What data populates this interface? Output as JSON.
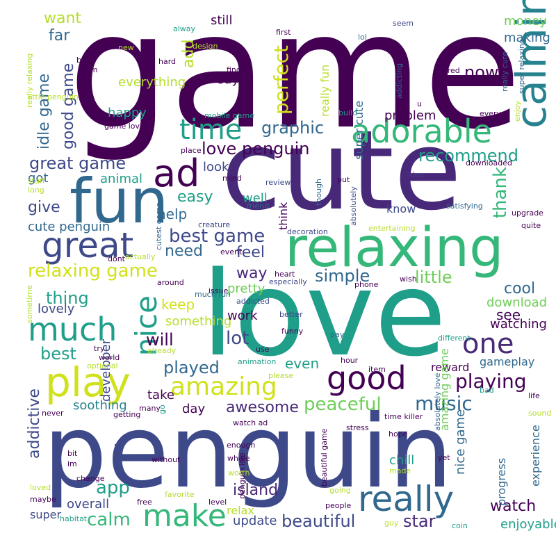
{
  "palette": {
    "purple": "#440154",
    "indigo": "#482878",
    "blue": "#3e4989",
    "steel": "#31688e",
    "teal": "#26828e",
    "sea": "#1f9e89",
    "green": "#35b779",
    "lime": "#6ece58",
    "yellowgreen": "#b5de2b",
    "yellow": "#cddc39",
    "bright": "#d0e11c"
  },
  "words": [
    {
      "text": "game",
      "color": "purple"
    },
    {
      "text": "cute",
      "color": "indigo"
    },
    {
      "text": "love",
      "color": "sea"
    },
    {
      "text": "penguin",
      "color": "blue"
    },
    {
      "text": "relaxing",
      "color": "green"
    },
    {
      "text": "fun",
      "color": "steel"
    },
    {
      "text": "calming",
      "color": "teal"
    },
    {
      "text": "play",
      "color": "bright"
    },
    {
      "text": "great",
      "color": "blue"
    },
    {
      "text": "adorable",
      "color": "green"
    },
    {
      "text": "ad",
      "color": "purple"
    },
    {
      "text": "time",
      "color": "sea"
    },
    {
      "text": "much",
      "color": "sea"
    },
    {
      "text": "good",
      "color": "purple"
    },
    {
      "text": "really",
      "color": "steel"
    },
    {
      "text": "amazing",
      "color": "bright"
    },
    {
      "text": "make",
      "color": "green"
    },
    {
      "text": "one",
      "color": "indigo"
    },
    {
      "text": "nice",
      "color": "sea"
    },
    {
      "text": "perfect",
      "color": "bright"
    },
    {
      "text": "relaxing game",
      "color": "bright"
    },
    {
      "text": "best game",
      "color": "blue"
    },
    {
      "text": "love penguin",
      "color": "purple"
    },
    {
      "text": "great game",
      "color": "blue"
    },
    {
      "text": "graphic",
      "color": "steel"
    },
    {
      "text": "now",
      "color": "purple"
    },
    {
      "text": "recommend",
      "color": "sea"
    },
    {
      "text": "thank",
      "color": "green"
    },
    {
      "text": "peaceful",
      "color": "lime"
    },
    {
      "text": "music",
      "color": "steel"
    },
    {
      "text": "playing",
      "color": "purple"
    },
    {
      "text": "beautiful",
      "color": "blue"
    },
    {
      "text": "island",
      "color": "indigo"
    },
    {
      "text": "calm",
      "color": "green"
    },
    {
      "text": "app",
      "color": "sea"
    },
    {
      "text": "star",
      "color": "indigo"
    },
    {
      "text": "watch",
      "color": "purple"
    },
    {
      "text": "played",
      "color": "steel"
    },
    {
      "text": "awesome",
      "color": "indigo"
    },
    {
      "text": "lot",
      "color": "blue"
    },
    {
      "text": "will",
      "color": "purple"
    },
    {
      "text": "simple",
      "color": "steel"
    },
    {
      "text": "little",
      "color": "lime"
    },
    {
      "text": "cool",
      "color": "steel"
    },
    {
      "text": "see",
      "color": "purple"
    },
    {
      "text": "way",
      "color": "indigo"
    },
    {
      "text": "feel",
      "color": "blue"
    },
    {
      "text": "need",
      "color": "steel"
    },
    {
      "text": "help",
      "color": "steel"
    },
    {
      "text": "easy",
      "color": "sea"
    },
    {
      "text": "give",
      "color": "blue"
    },
    {
      "text": "want",
      "color": "yellowgreen"
    },
    {
      "text": "far",
      "color": "steel"
    },
    {
      "text": "still",
      "color": "purple"
    },
    {
      "text": "add",
      "color": "yellowgreen"
    },
    {
      "text": "idle game",
      "color": "steel"
    },
    {
      "text": "good game",
      "color": "blue"
    },
    {
      "text": "everything",
      "color": "yellowgreen"
    },
    {
      "text": "say",
      "color": "purple"
    },
    {
      "text": "happy",
      "color": "sea"
    },
    {
      "text": "really fun",
      "color": "yellowgreen"
    },
    {
      "text": "super cute",
      "color": "steel"
    },
    {
      "text": "money",
      "color": "lime"
    },
    {
      "text": "making",
      "color": "steel"
    },
    {
      "text": "problem",
      "color": "purple"
    },
    {
      "text": "look",
      "color": "blue"
    },
    {
      "text": "animal",
      "color": "sea"
    },
    {
      "text": "got",
      "color": "steel"
    },
    {
      "text": "cute penguin",
      "color": "steel"
    },
    {
      "text": "well",
      "color": "sea"
    },
    {
      "text": "think",
      "color": "purple"
    },
    {
      "text": "know",
      "color": "blue"
    },
    {
      "text": "thing",
      "color": "sea"
    },
    {
      "text": "keep",
      "color": "bright"
    },
    {
      "text": "pretty",
      "color": "lime"
    },
    {
      "text": "something",
      "color": "yellowgreen"
    },
    {
      "text": "lovely",
      "color": "blue"
    },
    {
      "text": "best",
      "color": "sea"
    },
    {
      "text": "addictive",
      "color": "blue"
    },
    {
      "text": "developer",
      "color": "blue"
    },
    {
      "text": "work",
      "color": "purple"
    },
    {
      "text": "even",
      "color": "sea"
    },
    {
      "text": "take",
      "color": "purple"
    },
    {
      "text": "soothing",
      "color": "teal"
    },
    {
      "text": "day",
      "color": "purple"
    },
    {
      "text": "download",
      "color": "lime"
    },
    {
      "text": "watching",
      "color": "purple"
    },
    {
      "text": "reward",
      "color": "purple"
    },
    {
      "text": "gameplay",
      "color": "steel"
    },
    {
      "text": "amazing game",
      "color": "lime"
    },
    {
      "text": "nice game",
      "color": "steel"
    },
    {
      "text": "chill",
      "color": "sea"
    },
    {
      "text": "progress",
      "color": "steel"
    },
    {
      "text": "experience",
      "color": "steel"
    },
    {
      "text": "enjoyable",
      "color": "sea"
    },
    {
      "text": "overall",
      "color": "blue"
    },
    {
      "text": "update",
      "color": "blue"
    },
    {
      "text": "relax",
      "color": "yellowgreen"
    },
    {
      "text": "super",
      "color": "blue"
    },
    {
      "text": "seem",
      "color": "blue"
    },
    {
      "text": "lol",
      "color": "steel"
    },
    {
      "text": "first",
      "color": "purple"
    },
    {
      "text": "alway",
      "color": "sea"
    },
    {
      "text": "design",
      "color": "yellowgreen"
    },
    {
      "text": "new",
      "color": "yellowgreen"
    },
    {
      "text": "hard",
      "color": "purple"
    },
    {
      "text": "find",
      "color": "purple"
    },
    {
      "text": "buy",
      "color": "purple"
    },
    {
      "text": "gem",
      "color": "purple"
    },
    {
      "text": "really relaxing",
      "color": "yellowgreen"
    },
    {
      "text": "little penguin",
      "color": "yellowgreen"
    },
    {
      "text": "addicting",
      "color": "steel"
    },
    {
      "text": "bored",
      "color": "purple"
    },
    {
      "text": "really good",
      "color": "purple"
    },
    {
      "text": "really cute",
      "color": "steel"
    },
    {
      "text": "super relaxing",
      "color": "steel"
    },
    {
      "text": "rate",
      "color": "purple"
    },
    {
      "text": "mobile game",
      "color": "sea"
    },
    {
      "text": "build",
      "color": "sea"
    },
    {
      "text": "u",
      "color": "purple"
    },
    {
      "text": "every",
      "color": "purple"
    },
    {
      "text": "enjoy",
      "color": "yellowgreen"
    },
    {
      "text": "game love",
      "color": "purple"
    },
    {
      "text": "place",
      "color": "purple"
    },
    {
      "text": "mind",
      "color": "purple"
    },
    {
      "text": "review",
      "color": "blue"
    },
    {
      "text": "though",
      "color": "steel"
    },
    {
      "text": "put",
      "color": "purple"
    },
    {
      "text": "dev",
      "color": "blue"
    },
    {
      "text": "downloaded",
      "color": "purple"
    },
    {
      "text": "satisfying",
      "color": "steel"
    },
    {
      "text": "upgrade",
      "color": "purple"
    },
    {
      "text": "quite",
      "color": "purple"
    },
    {
      "text": "stuff",
      "color": "yellowgreen"
    },
    {
      "text": "long",
      "color": "yellowgreen"
    },
    {
      "text": "friend",
      "color": "steel"
    },
    {
      "text": "creature",
      "color": "blue"
    },
    {
      "text": "cutest game",
      "color": "steel"
    },
    {
      "text": "absolutely",
      "color": "blue"
    },
    {
      "text": "decoration",
      "color": "blue"
    },
    {
      "text": "entertaining",
      "color": "yellowgreen"
    },
    {
      "text": "dont",
      "color": "purple"
    },
    {
      "text": "actually",
      "color": "yellowgreen"
    },
    {
      "text": "event",
      "color": "purple"
    },
    {
      "text": "heart",
      "color": "purple"
    },
    {
      "text": "especially",
      "color": "blue"
    },
    {
      "text": "phone",
      "color": "purple"
    },
    {
      "text": "wish",
      "color": "purple"
    },
    {
      "text": "around",
      "color": "purple"
    },
    {
      "text": "issue",
      "color": "purple"
    },
    {
      "text": "much fun",
      "color": "steel"
    },
    {
      "text": "addicted",
      "color": "blue"
    },
    {
      "text": "better",
      "color": "blue"
    },
    {
      "text": "sometime",
      "color": "yellowgreen"
    },
    {
      "text": "funny",
      "color": "purple"
    },
    {
      "text": "pay",
      "color": "steel"
    },
    {
      "text": "different",
      "color": "sea"
    },
    {
      "text": "use",
      "color": "purple"
    },
    {
      "text": "try",
      "color": "purple"
    },
    {
      "text": "already",
      "color": "yellowgreen"
    },
    {
      "text": "world",
      "color": "purple"
    },
    {
      "text": "optional",
      "color": "yellowgreen"
    },
    {
      "text": "animation",
      "color": "sea"
    },
    {
      "text": "please",
      "color": "yellowgreen"
    },
    {
      "text": "hour",
      "color": "purple"
    },
    {
      "text": "item",
      "color": "purple"
    },
    {
      "text": "bad",
      "color": "sea"
    },
    {
      "text": "absolutely love",
      "color": "steel"
    },
    {
      "text": "life",
      "color": "purple"
    },
    {
      "text": "sound",
      "color": "yellowgreen"
    },
    {
      "text": "go",
      "color": "sea"
    },
    {
      "text": "many",
      "color": "purple"
    },
    {
      "text": "getting",
      "color": "purple"
    },
    {
      "text": "watch ad",
      "color": "purple"
    },
    {
      "text": "time killer",
      "color": "purple"
    },
    {
      "text": "never",
      "color": "purple"
    },
    {
      "text": "stress",
      "color": "purple"
    },
    {
      "text": "hope",
      "color": "purple"
    },
    {
      "text": "yet",
      "color": "purple"
    },
    {
      "text": "bit",
      "color": "purple"
    },
    {
      "text": "im",
      "color": "purple"
    },
    {
      "text": "nothing",
      "color": "blue"
    },
    {
      "text": "enough",
      "color": "purple"
    },
    {
      "text": "whale",
      "color": "purple"
    },
    {
      "text": "penguin isle",
      "color": "purple"
    },
    {
      "text": "beautiful game",
      "color": "purple"
    },
    {
      "text": "made",
      "color": "yellowgreen"
    },
    {
      "text": "without",
      "color": "purple"
    },
    {
      "text": "worth",
      "color": "yellowgreen"
    },
    {
      "text": "going",
      "color": "yellowgreen"
    },
    {
      "text": "loved",
      "color": "yellowgreen"
    },
    {
      "text": "change",
      "color": "purple"
    },
    {
      "text": "favorite",
      "color": "yellowgreen"
    },
    {
      "text": "maybe",
      "color": "purple"
    },
    {
      "text": "free",
      "color": "purple"
    },
    {
      "text": "level",
      "color": "purple"
    },
    {
      "text": "people",
      "color": "purple"
    },
    {
      "text": "habitat",
      "color": "sea"
    },
    {
      "text": "guy",
      "color": "yellowgreen"
    },
    {
      "text": "coin",
      "color": "sea"
    }
  ]
}
